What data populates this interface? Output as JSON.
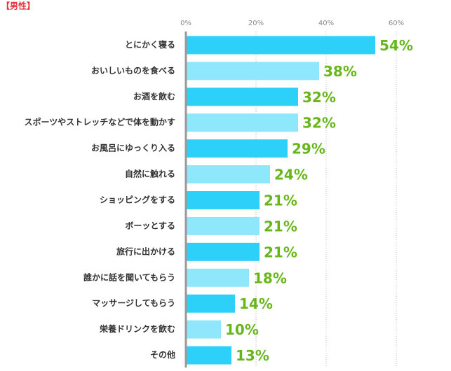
{
  "chart_data": {
    "type": "hbar",
    "title": "【男性】",
    "categories": [
      "とにかく寝る",
      "おいしいものを食べる",
      "お酒を飲む",
      "スポーツやストレッチなどで体を動かす",
      "お風呂にゆっくり入る",
      "自然に触れる",
      "ショッピングをする",
      "ボーッとする",
      "旅行に出かける",
      "誰かに話を聞いてもらう",
      "マッサージしてもらう",
      "栄養ドリンクを飲む",
      "その他"
    ],
    "values": [
      54,
      38,
      32,
      32,
      29,
      24,
      21,
      21,
      21,
      18,
      14,
      10,
      13
    ],
    "value_labels": [
      "54%",
      "38%",
      "32%",
      "32%",
      "29%",
      "24%",
      "21%",
      "21%",
      "21%",
      "18%",
      "14%",
      "10%",
      "13%"
    ],
    "colors": [
      "#2dd0f8",
      "#8fe7fc"
    ],
    "label_color": "#66b61c",
    "xlim": [
      0,
      75
    ],
    "xticks": [
      {
        "value": 0,
        "label": "0%"
      },
      {
        "value": 20,
        "label": "20%"
      },
      {
        "value": 40,
        "label": "40%"
      },
      {
        "value": 60,
        "label": "60%"
      }
    ],
    "grid": true
  }
}
